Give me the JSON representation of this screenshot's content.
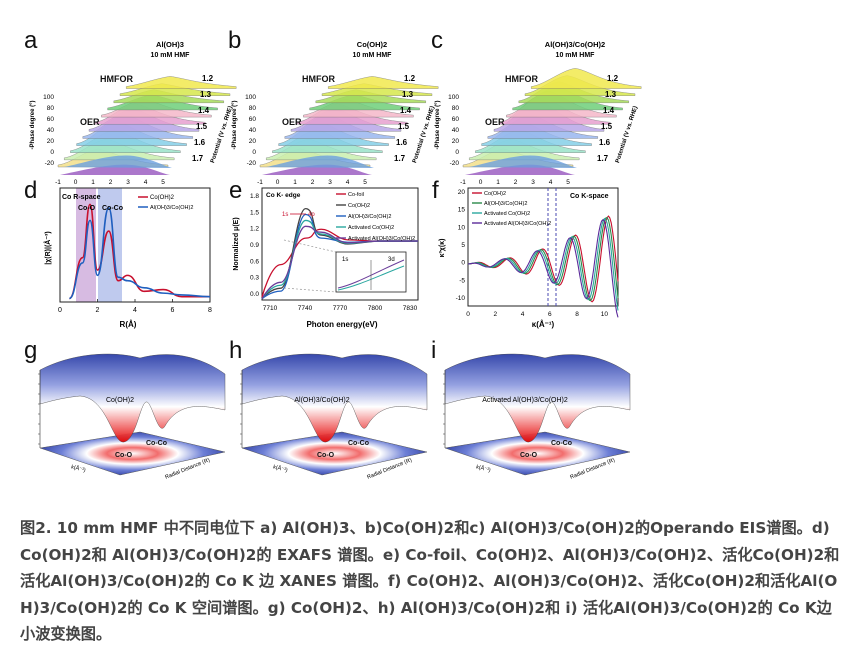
{
  "panel_letters": [
    "a",
    "b",
    "c",
    "d",
    "e",
    "f",
    "g",
    "h",
    "i"
  ],
  "eis": {
    "axis_phase": "-Phase degree (°)",
    "axis_freq": "Log[Frequency]",
    "axis_potential": "Potential (V vs. RHE)",
    "phase_ticks": [
      "100",
      "80",
      "60",
      "40",
      "20",
      "0",
      "-20"
    ],
    "freq_ticks": [
      "-1",
      "0",
      "1",
      "2",
      "3",
      "4",
      "5"
    ],
    "potentials": [
      "1.2",
      "1.3",
      "1.4",
      "1.5",
      "1.6",
      "1.7"
    ],
    "hmfor": "HMFOR",
    "oer": "OER",
    "titles": [
      "Al(OH)3 10 mM HMF",
      "Co(OH)2 10 mM HMF",
      "Al(OH)3/Co(OH)2 10 mM HMF"
    ]
  },
  "chart_data": [
    {
      "type": "line",
      "title": "Co R-space",
      "xlabel": "R(Å)",
      "ylabel": "|χ(R)|(Å⁻³)",
      "xlim": [
        0,
        8
      ],
      "x_ticks": [
        "0",
        "2",
        "4",
        "6",
        "8"
      ],
      "annotations": [
        "Co-O",
        "Co-Co"
      ],
      "series": [
        {
          "name": "Co(OH)2",
          "x": [
            0.5,
            1.2,
            1.6,
            2.0,
            2.6,
            3.1,
            3.6,
            4.5,
            5.5,
            6.5,
            8
          ],
          "values": [
            0.2,
            2.5,
            5.5,
            1.8,
            4.0,
            1.2,
            1.5,
            0.6,
            0.7,
            0.3,
            0.3
          ]
        },
        {
          "name": "Al(OH)3/Co(OH)2",
          "x": [
            0.5,
            1.2,
            1.6,
            2.0,
            2.6,
            3.1,
            3.6,
            4.5,
            5.5,
            6.5,
            8
          ],
          "values": [
            0.2,
            2.2,
            4.6,
            1.5,
            5.3,
            1.4,
            1.2,
            0.8,
            0.5,
            0.4,
            0.3
          ]
        }
      ]
    },
    {
      "type": "line",
      "title": "Co K- edge",
      "xlabel": "Photon energy(eV)",
      "ylabel": "Normalized μ(E)",
      "xlim": [
        7700,
        7840
      ],
      "x_ticks": [
        "7710",
        "7740",
        "7770",
        "7800",
        "7830"
      ],
      "y_ticks": [
        "0.0",
        "0.3",
        "0.6",
        "0.9",
        "1.2",
        "1.5",
        "1.8"
      ],
      "inset_labels": [
        "1s",
        "4p",
        "1s",
        "3d"
      ],
      "series": [
        {
          "name": "Co-foil",
          "values": [
            0.05,
            0.6,
            1.05,
            1.2,
            1.02,
            1.0,
            1.0
          ]
        },
        {
          "name": "Co(OH)2",
          "values": [
            0.02,
            0.2,
            1.55,
            1.1,
            0.95,
            1.0,
            1.0
          ]
        },
        {
          "name": "Al(OH)3/Co(OH)2",
          "values": [
            0.02,
            0.15,
            1.45,
            1.05,
            0.98,
            1.0,
            1.0
          ]
        },
        {
          "name": "Activated Co(OH)2",
          "values": [
            0.02,
            0.25,
            1.35,
            1.12,
            0.96,
            1.0,
            1.0
          ]
        },
        {
          "name": "Activated Al(OH)3/Co(OH)2",
          "values": [
            0.02,
            0.3,
            1.25,
            1.15,
            0.97,
            1.0,
            1.0
          ]
        }
      ]
    },
    {
      "type": "line",
      "title": "Co K-space",
      "xlabel": "κ(Å⁻¹)",
      "ylabel": "κ³χ(κ)",
      "xlim": [
        0,
        11
      ],
      "x_ticks": [
        "0",
        "2",
        "4",
        "6",
        "8",
        "10"
      ],
      "y_ticks": [
        "20",
        "15",
        "10",
        "5",
        "0",
        "-5",
        "-10"
      ],
      "series": [
        {
          "name": "Co(OH)2"
        },
        {
          "name": "Al(OH)3/Co(OH)2"
        },
        {
          "name": "Activated Co(OH)2"
        },
        {
          "name": "Activated Al(OH)3/Co(OH)2"
        }
      ]
    }
  ],
  "wavelet": {
    "labels": [
      "Co(OH)2",
      "Al(OH)3/Co(OH)2",
      "Activated Al(OH)3/Co(OH)2"
    ],
    "co_o": "Co-O",
    "co_co": "Co-Co",
    "radial": "Radial Distance (R)",
    "k_axis": "k(Å⁻¹)"
  },
  "caption": "图2. 10 mm HMF 中不同电位下 a) Al(OH)3、b)Co(OH)2和c) Al(OH)3/Co(OH)2的Operando EIS谱图。d) Co(OH)2和 Al(OH)3/Co(OH)2的 EXAFS 谱图。e) Co-foil、Co(OH)2、Al(OH)3/Co(OH)2、活化Co(OH)2和活化Al(OH)3/Co(OH)2的 Co K 边 XANES 谱图。f) Co(OH)2、Al(OH)3/Co(OH)2、活化Co(OH)2和活化Al(OH)3/Co(OH)2的 Co K 空间谱图。g) Co(OH)2、h) Al(OH)3/Co(OH)2和 i) 活化Al(OH)3/Co(OH)2的 Co K边小波变换图。",
  "colors": {
    "red": "#c8102e",
    "blue": "#1f5fbf",
    "teal": "#2aa7a0",
    "purple": "#6a3d9a",
    "violet": "#8a2be2"
  }
}
